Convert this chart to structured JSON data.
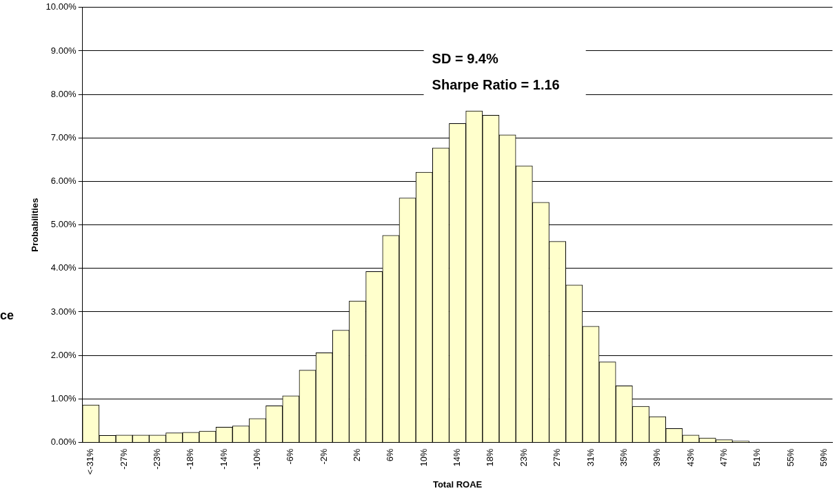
{
  "chart_data": {
    "type": "bar",
    "xlabel": "Total ROAE",
    "ylabel": "Probabilities",
    "categories": [
      "<-31%",
      null,
      "-27%",
      null,
      "-23%",
      null,
      "-18%",
      null,
      "-14%",
      null,
      "-10%",
      null,
      "-6%",
      null,
      "-2%",
      null,
      "2%",
      null,
      "6%",
      null,
      "10%",
      null,
      "14%",
      null,
      "18%",
      null,
      "23%",
      null,
      "27%",
      null,
      "31%",
      null,
      "35%",
      null,
      "39%",
      null,
      "43%",
      null,
      "47%",
      null,
      "51%",
      null,
      "55%",
      null,
      "59%"
    ],
    "values": [
      0.86,
      0.16,
      0.17,
      0.17,
      0.17,
      0.22,
      0.23,
      0.26,
      0.35,
      0.38,
      0.55,
      0.84,
      1.07,
      1.66,
      2.06,
      2.58,
      3.25,
      3.93,
      4.76,
      5.62,
      6.21,
      6.77,
      7.33,
      7.62,
      7.52,
      7.07,
      6.36,
      5.52,
      4.62,
      3.62,
      2.67,
      1.85,
      1.3,
      0.83,
      0.59,
      0.32,
      0.17,
      0.1,
      0.06,
      0.03,
      null,
      null,
      null,
      null,
      null
    ],
    "color": "#ffffcc",
    "ylim": [
      0,
      10
    ],
    "yticks": [
      {
        "value": 0,
        "label": "0.00%"
      },
      {
        "value": 1,
        "label": "1.00%"
      },
      {
        "value": 2,
        "label": "2.00%"
      },
      {
        "value": 3,
        "label": "3.00%"
      },
      {
        "value": 4,
        "label": "4.00%"
      },
      {
        "value": 5,
        "label": "5.00%"
      },
      {
        "value": 6,
        "label": "6.00%"
      },
      {
        "value": 7,
        "label": "7.00%"
      },
      {
        "value": 8,
        "label": "8.00%"
      },
      {
        "value": 9,
        "label": "9.00%"
      },
      {
        "value": 10,
        "label": "10.00%"
      }
    ],
    "grid": "y",
    "legend": false,
    "annotations": [
      "SD = 9.4%",
      "Sharpe Ratio = 1.16",
      "ce"
    ]
  }
}
